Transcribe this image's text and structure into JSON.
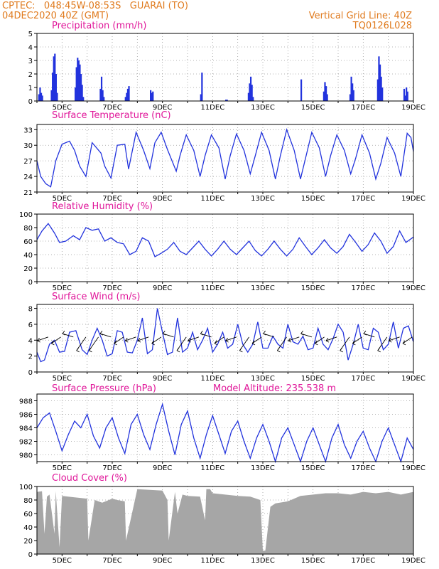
{
  "header": {
    "left_line1": "CPTEC:   048:45W-08:53S   GUARAI (TO)",
    "left_line2": "04DEC2020 40Z (GMT)",
    "right_line1": "Vertical Grid Line: 40Z",
    "right_line2": "TQ0126L028"
  },
  "x_axis": {
    "ticks": [
      "5DEC",
      "7DEC",
      "9DEC",
      "11DEC",
      "13DEC",
      "15DEC",
      "17DEC",
      "19DEC"
    ]
  },
  "colors": {
    "line": "#2233dd",
    "title": "#e0179a",
    "header": "#e07b1f",
    "cloud": "#a6a6a6"
  },
  "chart_data": [
    {
      "type": "bar",
      "title": "Precipitation (mm/h)",
      "ylim": [
        0,
        5
      ],
      "yticks": [
        0,
        1,
        2,
        3,
        4,
        5
      ],
      "x_range": [
        4,
        19
      ],
      "events": [
        {
          "day": 4.05,
          "values": [
            0.5,
            1.0,
            0.6,
            0.4
          ]
        },
        {
          "day": 4.55,
          "values": [
            0.8,
            2.1,
            3.3,
            3.5,
            2.0,
            0.6
          ]
        },
        {
          "day": 5.5,
          "values": [
            1.0,
            2.5,
            3.2,
            3.0,
            2.7,
            2.0,
            1.2,
            0.3
          ]
        },
        {
          "day": 6.5,
          "values": [
            0.9,
            1.8,
            0.8,
            0.3
          ]
        },
        {
          "day": 7.5,
          "values": [
            0.3,
            0.6,
            0.9,
            1.1
          ]
        },
        {
          "day": 8.5,
          "values": [
            0.8,
            0.6,
            0.7
          ]
        },
        {
          "day": 10.5,
          "values": [
            0.5,
            2.1
          ]
        },
        {
          "day": 11.5,
          "values": [
            0.1,
            0.1
          ]
        },
        {
          "day": 12.4,
          "values": [
            0.6,
            1.3,
            1.8,
            1.2,
            0.3
          ]
        },
        {
          "day": 14.5,
          "values": [
            1.6
          ]
        },
        {
          "day": 15.4,
          "values": [
            0.7,
            1.4,
            1.1,
            0.5
          ]
        },
        {
          "day": 16.45,
          "values": [
            0.5,
            1.8,
            1.3,
            0.8
          ]
        },
        {
          "day": 17.55,
          "values": [
            1.6,
            3.3,
            2.7,
            1.8,
            1.0
          ]
        },
        {
          "day": 18.6,
          "values": [
            0.9,
            0.4,
            1.0,
            0.7
          ]
        }
      ]
    },
    {
      "type": "line",
      "title": "Surface Temperature (nC)",
      "ylim": [
        21,
        34
      ],
      "yticks": [
        21,
        24,
        27,
        30,
        33
      ],
      "x_range": [
        4,
        19
      ],
      "x": [
        4.0,
        4.15,
        4.35,
        4.55,
        4.75,
        5.0,
        5.3,
        5.5,
        5.7,
        5.95,
        6.2,
        6.55,
        6.7,
        6.95,
        7.2,
        7.5,
        7.65,
        7.95,
        8.25,
        8.5,
        8.7,
        8.95,
        9.2,
        9.55,
        9.7,
        9.95,
        10.25,
        10.5,
        10.7,
        10.95,
        11.25,
        11.5,
        11.7,
        11.95,
        12.25,
        12.5,
        12.7,
        12.95,
        13.25,
        13.5,
        13.7,
        13.95,
        14.25,
        14.5,
        14.7,
        14.95,
        15.25,
        15.5,
        15.7,
        15.95,
        16.25,
        16.5,
        16.7,
        16.95,
        17.25,
        17.5,
        17.7,
        17.95,
        18.25,
        18.5,
        18.75,
        18.9,
        19.0
      ],
      "values": [
        27,
        24,
        22.6,
        22.0,
        27.0,
        30.2,
        30.8,
        29.0,
        26.0,
        24.0,
        30.5,
        28.5,
        26.0,
        23.7,
        30.0,
        30.2,
        25.4,
        32.5,
        29.0,
        25.5,
        30.5,
        32.5,
        29.2,
        25.0,
        28.0,
        32.0,
        29.0,
        24.0,
        28.0,
        32.0,
        29.5,
        23.5,
        28.0,
        32.2,
        29.0,
        24.5,
        28.0,
        32.5,
        29.0,
        23.5,
        28.0,
        33.0,
        29.0,
        23.5,
        27.5,
        32.5,
        29.5,
        24.0,
        28.0,
        32.0,
        29.0,
        24.5,
        27.5,
        32.0,
        28.5,
        23.5,
        26.5,
        31.5,
        28.5,
        24.0,
        32.3,
        31.5,
        28.8
      ]
    },
    {
      "type": "line",
      "title": "Relative Humidity (%)",
      "ylim": [
        0,
        100
      ],
      "yticks": [
        0,
        20,
        40,
        60,
        80,
        100
      ],
      "x_range": [
        4,
        19
      ],
      "x": [
        4.0,
        4.2,
        4.45,
        4.7,
        4.9,
        5.15,
        5.45,
        5.7,
        5.95,
        6.2,
        6.45,
        6.7,
        6.95,
        7.2,
        7.45,
        7.7,
        7.95,
        8.2,
        8.45,
        8.7,
        8.95,
        9.2,
        9.45,
        9.7,
        9.95,
        10.2,
        10.45,
        10.7,
        10.95,
        11.2,
        11.45,
        11.7,
        11.95,
        12.2,
        12.45,
        12.7,
        12.95,
        13.2,
        13.45,
        13.7,
        13.95,
        14.2,
        14.45,
        14.7,
        14.95,
        15.2,
        15.45,
        15.7,
        15.95,
        16.2,
        16.45,
        16.7,
        16.95,
        17.2,
        17.45,
        17.7,
        17.95,
        18.2,
        18.45,
        18.7,
        19.0
      ],
      "values": [
        62,
        75,
        86,
        72,
        58,
        60,
        68,
        62,
        80,
        76,
        78,
        60,
        65,
        58,
        56,
        40,
        45,
        65,
        60,
        37,
        42,
        48,
        58,
        45,
        40,
        50,
        60,
        48,
        38,
        48,
        60,
        48,
        40,
        50,
        60,
        46,
        38,
        48,
        60,
        48,
        38,
        48,
        65,
        52,
        40,
        50,
        62,
        50,
        42,
        52,
        70,
        58,
        45,
        55,
        72,
        60,
        42,
        52,
        75,
        58,
        66
      ]
    },
    {
      "type": "line",
      "title": "Surface Wind (m/s)",
      "ylim": [
        0,
        8.5
      ],
      "yticks": [
        0,
        2,
        4,
        6,
        8
      ],
      "x_range": [
        4,
        19
      ],
      "x": [
        4.0,
        4.15,
        4.3,
        4.5,
        4.7,
        4.9,
        5.1,
        5.3,
        5.55,
        5.8,
        6.0,
        6.2,
        6.4,
        6.6,
        6.8,
        7.0,
        7.2,
        7.4,
        7.6,
        7.8,
        8.0,
        8.2,
        8.4,
        8.6,
        8.8,
        9.0,
        9.2,
        9.4,
        9.6,
        9.8,
        10.0,
        10.2,
        10.4,
        10.6,
        10.8,
        11.0,
        11.2,
        11.4,
        11.6,
        11.8,
        12.0,
        12.2,
        12.4,
        12.6,
        12.8,
        13.0,
        13.2,
        13.4,
        13.6,
        13.8,
        14.0,
        14.2,
        14.4,
        14.6,
        14.8,
        15.0,
        15.2,
        15.4,
        15.6,
        15.8,
        16.0,
        16.2,
        16.4,
        16.6,
        16.8,
        17.0,
        17.2,
        17.4,
        17.6,
        17.8,
        18.0,
        18.2,
        18.4,
        18.6,
        18.8,
        19.0
      ],
      "values": [
        2.5,
        1.3,
        1.5,
        3.5,
        4.0,
        2.5,
        2.6,
        5.0,
        5.2,
        2.8,
        2.2,
        4.0,
        5.5,
        4.0,
        2.0,
        2.3,
        5.2,
        5.0,
        2.5,
        2.4,
        4.0,
        6.8,
        2.3,
        2.8,
        8.0,
        5.0,
        2.2,
        2.5,
        6.8,
        2.5,
        3.0,
        5.0,
        2.8,
        4.0,
        5.5,
        2.5,
        3.5,
        5.0,
        3.0,
        3.5,
        6.0,
        3.5,
        2.5,
        3.5,
        6.3,
        3.0,
        3.0,
        4.5,
        3.5,
        3.0,
        6.0,
        3.8,
        3.5,
        4.5,
        2.8,
        3.0,
        5.5,
        3.5,
        2.8,
        4.2,
        6.0,
        5.0,
        1.5,
        3.5,
        6.0,
        3.0,
        2.8,
        5.5,
        5.0,
        2.8,
        3.5,
        6.3,
        3.0,
        5.5,
        5.8,
        3.8
      ]
    },
    {
      "type": "line",
      "title": "Surface Pressure (hPa)",
      "annotation": "Model Altitude: 235.538 m",
      "ylim": [
        979,
        989
      ],
      "yticks": [
        980,
        982,
        984,
        986,
        988
      ],
      "x_range": [
        4,
        19
      ],
      "x": [
        4.0,
        4.25,
        4.5,
        4.75,
        5.0,
        5.25,
        5.5,
        5.75,
        6.0,
        6.25,
        6.5,
        6.75,
        7.0,
        7.25,
        7.5,
        7.75,
        8.0,
        8.25,
        8.5,
        8.75,
        9.0,
        9.25,
        9.5,
        9.75,
        10.0,
        10.25,
        10.5,
        10.75,
        11.0,
        11.25,
        11.5,
        11.75,
        12.0,
        12.25,
        12.5,
        12.75,
        13.0,
        13.25,
        13.5,
        13.75,
        14.0,
        14.25,
        14.5,
        14.75,
        15.0,
        15.25,
        15.5,
        15.75,
        16.0,
        16.25,
        16.5,
        16.75,
        17.0,
        17.25,
        17.5,
        17.75,
        18.0,
        18.25,
        18.5,
        18.75,
        19.0
      ],
      "values": [
        984.0,
        985.5,
        986.2,
        983.5,
        980.6,
        983.0,
        985.0,
        984.0,
        986.0,
        982.8,
        981.0,
        984.0,
        985.5,
        982.5,
        980.2,
        984.5,
        986.0,
        983.0,
        980.8,
        984.5,
        987.5,
        983.5,
        980.0,
        984.5,
        986.5,
        982.5,
        979.5,
        983.0,
        985.8,
        983.0,
        980.2,
        983.5,
        985.0,
        982.0,
        979.5,
        982.5,
        984.5,
        982.0,
        979.0,
        982.5,
        984.0,
        981.5,
        979.0,
        982.0,
        984.0,
        981.5,
        979.0,
        982.5,
        984.5,
        981.5,
        979.5,
        982.0,
        983.5,
        981.0,
        979.0,
        982.0,
        984.0,
        981.5,
        979.0,
        982.5,
        980.8
      ]
    },
    {
      "type": "area",
      "title": "Cloud Cover (%)",
      "ylim": [
        0,
        100
      ],
      "yticks": [
        0,
        20,
        40,
        60,
        80,
        100
      ],
      "x_range": [
        4,
        19
      ],
      "x": [
        4.0,
        4.2,
        4.3,
        4.4,
        4.5,
        4.7,
        4.75,
        4.9,
        5.0,
        5.5,
        6.0,
        6.05,
        6.3,
        6.6,
        7.0,
        7.2,
        7.5,
        7.55,
        8.0,
        8.5,
        9.0,
        9.2,
        9.25,
        9.5,
        9.6,
        9.8,
        10.0,
        10.5,
        10.7,
        10.75,
        10.9,
        11.0,
        11.5,
        12.0,
        12.5,
        12.9,
        13.0,
        13.1,
        13.3,
        13.5,
        14.0,
        14.5,
        15.0,
        15.5,
        16.0,
        16.5,
        17.0,
        17.5,
        18.0,
        18.5,
        19.0
      ],
      "values": [
        92,
        93,
        30,
        85,
        88,
        30,
        93,
        10,
        86,
        84,
        82,
        20,
        80,
        76,
        82,
        80,
        78,
        20,
        96,
        95,
        94,
        80,
        20,
        92,
        60,
        88,
        86,
        85,
        50,
        96,
        96,
        90,
        88,
        86,
        85,
        80,
        5,
        5,
        70,
        75,
        78,
        86,
        88,
        90,
        90,
        88,
        92,
        90,
        92,
        88,
        92
      ]
    }
  ]
}
